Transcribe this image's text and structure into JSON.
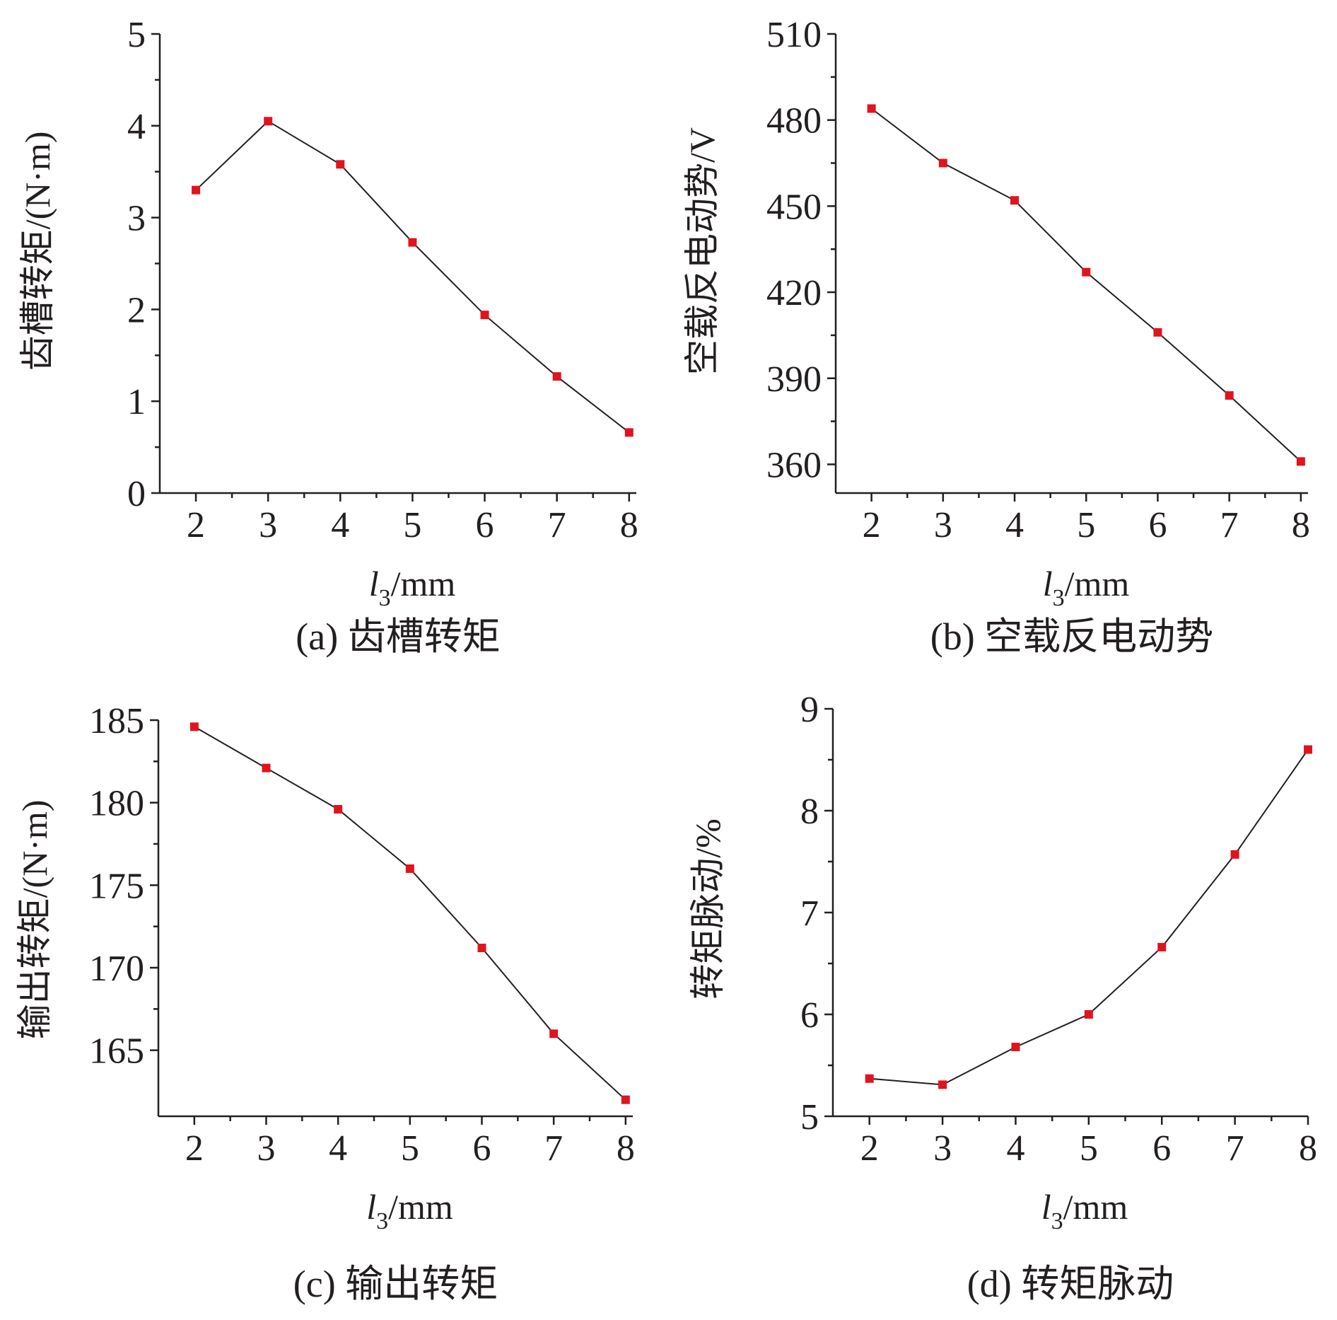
{
  "chart_data": [
    {
      "type": "line",
      "caption": "(a) 齿槽转矩",
      "xlabel": {
        "var": "l",
        "sub": "3",
        "unit": "/mm"
      },
      "ylabel": "齿槽转矩/(N·m)",
      "x": [
        2,
        3,
        4,
        5,
        6,
        7,
        8
      ],
      "series": [
        {
          "values": [
            3.3,
            4.05,
            3.58,
            2.73,
            1.94,
            1.27,
            0.66
          ]
        }
      ],
      "xlim": [
        1.5,
        8.1
      ],
      "ylim": [
        0,
        5
      ],
      "xticks": [
        2,
        3,
        4,
        5,
        6,
        7,
        8
      ],
      "yticks": [
        0,
        1,
        2,
        3,
        4,
        5
      ],
      "grid": false,
      "marker_color": "#e0141e",
      "line_color": "#231f20"
    },
    {
      "type": "line",
      "caption": "(b) 空载反电动势",
      "xlabel": {
        "var": "l",
        "sub": "3",
        "unit": "/mm"
      },
      "ylabel": "空载反电动势/V",
      "x": [
        2,
        3,
        4,
        5,
        6,
        7,
        8
      ],
      "series": [
        {
          "values": [
            484,
            465,
            452,
            427,
            406,
            384,
            361
          ]
        }
      ],
      "xlim": [
        1.5,
        8.1
      ],
      "ylim": [
        350,
        510
      ],
      "xticks": [
        2,
        3,
        4,
        5,
        6,
        7,
        8
      ],
      "yticks": [
        360,
        390,
        420,
        450,
        480,
        510
      ],
      "grid": false,
      "marker_color": "#e0141e",
      "line_color": "#231f20"
    },
    {
      "type": "line",
      "caption": "(c) 输出转矩",
      "xlabel": {
        "var": "l",
        "sub": "3",
        "unit": "/mm"
      },
      "ylabel": "输出转矩/(N·m)",
      "x": [
        2,
        3,
        4,
        5,
        6,
        7,
        8
      ],
      "series": [
        {
          "values": [
            184.6,
            182.1,
            179.6,
            176.0,
            171.2,
            166.0,
            162.0
          ]
        }
      ],
      "xlim": [
        1.5,
        8.1
      ],
      "ylim": [
        161,
        185
      ],
      "xticks": [
        2,
        3,
        4,
        5,
        6,
        7,
        8
      ],
      "yticks": [
        165,
        170,
        175,
        180,
        185
      ],
      "grid": false,
      "marker_color": "#e0141e",
      "line_color": "#231f20"
    },
    {
      "type": "line",
      "caption": "(d) 转矩脉动",
      "xlabel": {
        "var": "l",
        "sub": "3",
        "unit": "/mm"
      },
      "ylabel": "转矩脉动/%",
      "x": [
        2,
        3,
        4,
        5,
        6,
        7,
        8
      ],
      "series": [
        {
          "values": [
            5.37,
            5.31,
            5.68,
            6.0,
            6.66,
            7.57,
            8.6
          ]
        }
      ],
      "xlim": [
        1.5,
        8.0
      ],
      "ylim": [
        5,
        9
      ],
      "xticks": [
        2,
        3,
        4,
        5,
        6,
        7,
        8
      ],
      "yticks": [
        5,
        6,
        7,
        8,
        9
      ],
      "grid": false,
      "marker_color": "#e0141e",
      "line_color": "#231f20"
    }
  ]
}
